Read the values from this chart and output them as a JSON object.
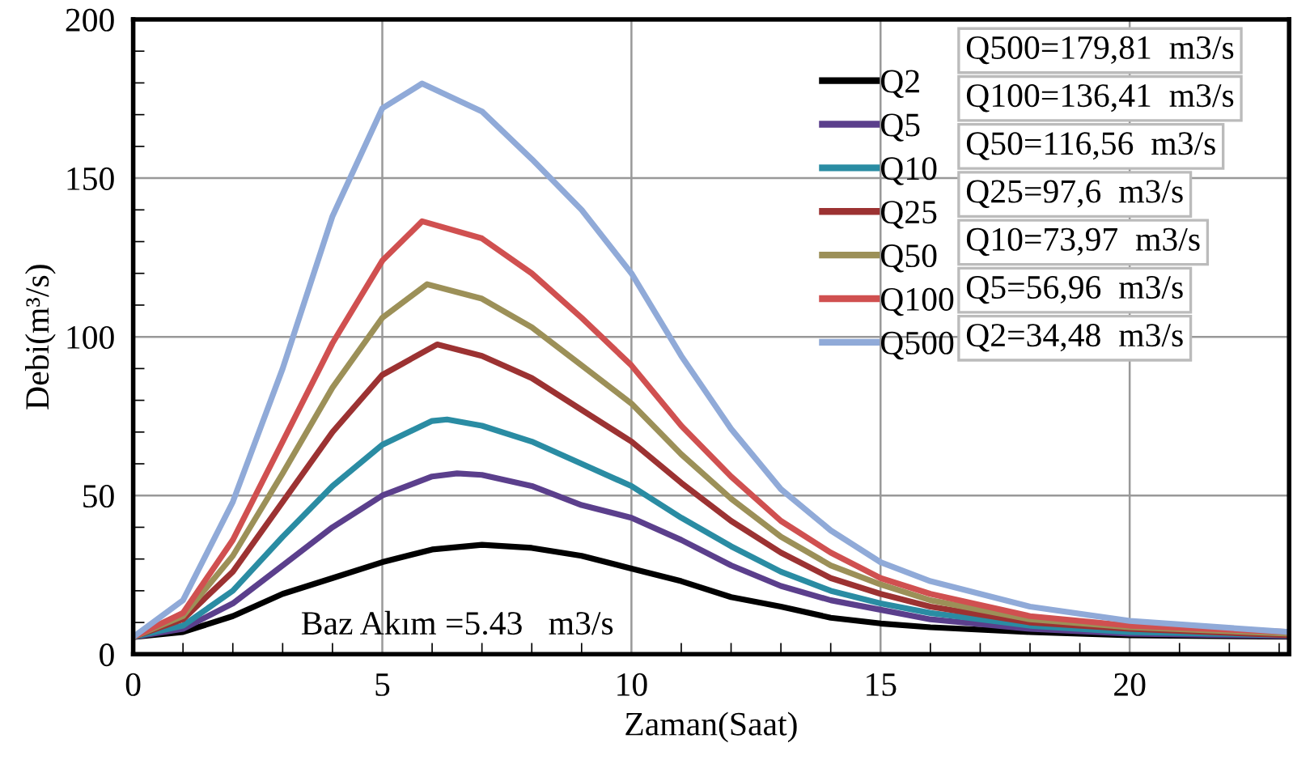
{
  "chart_data": {
    "type": "line",
    "xlabel": "Zaman(Saat)",
    "ylabel": "Debi(m³/s)",
    "xlim": [
      0,
      23.2
    ],
    "xticks": [
      0,
      5,
      10,
      15,
      20
    ],
    "ylim": [
      0,
      200
    ],
    "yticks": [
      0,
      50,
      100,
      150,
      200
    ],
    "grid": true,
    "legend": "top",
    "marker": "none",
    "line_style": "solid",
    "annotations": [
      "Baz Akım =5.43   m3/s",
      "Q500=179,81  m3/s",
      "Q100=136,41  m3/s",
      "Q50=116,56  m3/s",
      "Q25=97,6  m3/s",
      "Q10=73,97  m3/s",
      "Q5=56,96  m3/s",
      "Q2=34,48  m3/s"
    ],
    "series": [
      {
        "name": "Q2",
        "color": "#000000",
        "x": [
          0,
          1,
          2,
          3,
          4,
          5,
          6,
          7,
          8,
          9,
          10,
          11,
          12,
          13,
          14,
          15,
          16,
          18,
          20,
          23.2
        ],
        "values": [
          5.43,
          7,
          12,
          19,
          24,
          29,
          33,
          34.48,
          33.5,
          31,
          27,
          23,
          18,
          15,
          11.5,
          9.7,
          8.5,
          7,
          6,
          5.5
        ]
      },
      {
        "name": "Q5",
        "color": "#5b3f8c",
        "x": [
          0,
          1,
          2,
          3,
          4,
          5,
          6,
          6.5,
          7,
          8,
          9,
          10,
          11,
          12,
          13,
          14,
          15,
          16,
          18,
          20,
          23.2
        ],
        "values": [
          5.43,
          8,
          16,
          28,
          40,
          50,
          56,
          56.96,
          56.5,
          53,
          47,
          43,
          36,
          28,
          21.5,
          17,
          14,
          11,
          8,
          6.5,
          5.7
        ]
      },
      {
        "name": "Q10",
        "color": "#2a8ca3",
        "x": [
          0,
          1,
          2,
          3,
          4,
          5,
          6,
          6.3,
          7,
          8,
          9,
          10,
          11,
          12,
          13,
          14,
          15,
          16,
          18,
          20,
          23.2
        ],
        "values": [
          5.43,
          9,
          20,
          37,
          53,
          66,
          73.5,
          73.97,
          72,
          67,
          60,
          53,
          43,
          34,
          26,
          20,
          16,
          13,
          9,
          7,
          6
        ]
      },
      {
        "name": "Q25",
        "color": "#9c3232",
        "x": [
          0,
          1,
          2,
          3,
          4,
          5,
          6.1,
          7,
          8,
          9,
          10,
          11,
          12,
          13,
          14,
          15,
          16,
          18,
          20,
          23.2
        ],
        "values": [
          5.43,
          11,
          26,
          48,
          70,
          88,
          97.6,
          94,
          87,
          77,
          67,
          54,
          42,
          32,
          24,
          19,
          15,
          10,
          8,
          6
        ]
      },
      {
        "name": "Q50",
        "color": "#9c9058",
        "x": [
          0,
          1,
          2,
          3,
          4,
          5,
          5.9,
          7,
          8,
          9,
          10,
          11,
          12,
          13,
          14,
          15,
          16,
          18,
          20,
          23.2
        ],
        "values": [
          5.43,
          12,
          31,
          57,
          84,
          106,
          116.56,
          112,
          103,
          91,
          79,
          63,
          49,
          37,
          28,
          22,
          17,
          11,
          8.5,
          6.5
        ]
      },
      {
        "name": "Q100",
        "color": "#d05050",
        "x": [
          0,
          1,
          2,
          3,
          4,
          5,
          5.8,
          7,
          8,
          9,
          10,
          11,
          12,
          13,
          14,
          15,
          16,
          18,
          20,
          23.2
        ],
        "values": [
          5.43,
          13,
          36,
          67,
          98,
          124,
          136.41,
          131,
          120,
          106,
          91,
          72,
          56,
          42,
          32,
          24,
          19,
          12,
          9,
          7
        ]
      },
      {
        "name": "Q500",
        "color": "#90aad8",
        "x": [
          0,
          1,
          2,
          3,
          4,
          5,
          5.8,
          7,
          8,
          9,
          10,
          11,
          12,
          13,
          14,
          15,
          16,
          18,
          20,
          23.2
        ],
        "values": [
          5.43,
          17,
          48,
          90,
          138,
          172,
          179.81,
          171,
          156,
          140,
          120,
          94,
          71,
          52,
          39,
          29,
          23,
          15,
          10.5,
          7
        ]
      }
    ]
  }
}
